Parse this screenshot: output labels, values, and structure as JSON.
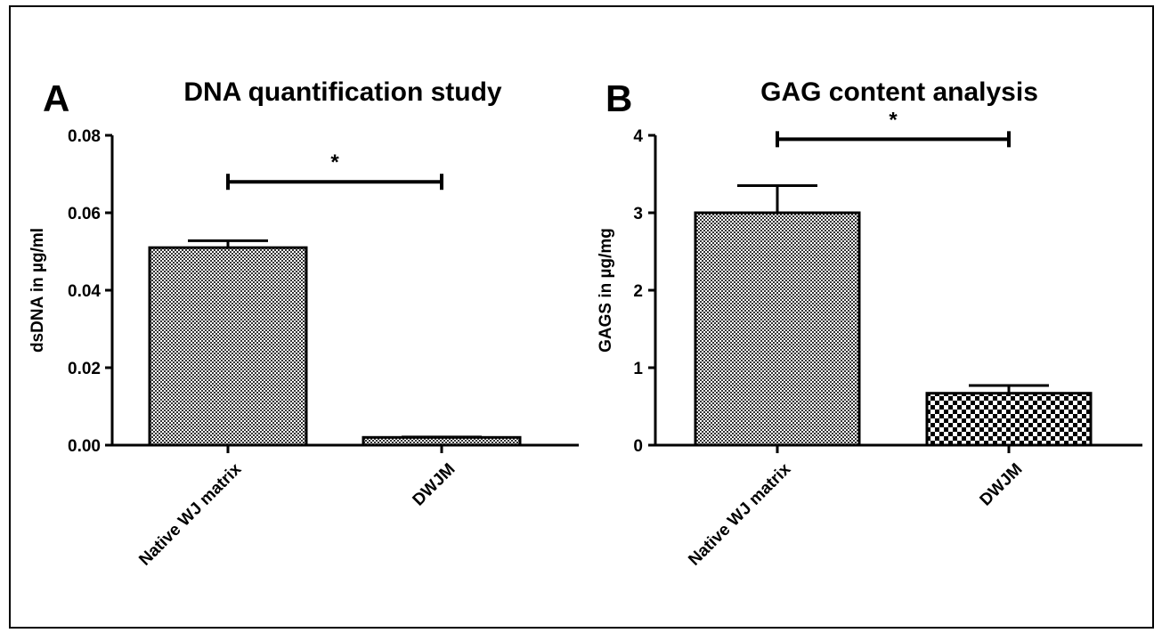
{
  "figure": {
    "frame": true
  },
  "chart_data": [
    {
      "type": "bar",
      "panel": "A",
      "title": "DNA quantification study",
      "xlabel": "",
      "ylabel": "dsDNA in µg/ml",
      "ylim": [
        0,
        0.08
      ],
      "yticks": [
        "0.00",
        "0.02",
        "0.04",
        "0.06",
        "0.08"
      ],
      "ytick_values": [
        0,
        0.02,
        0.04,
        0.06,
        0.08
      ],
      "categories": [
        "Native WJ matrix",
        "DWJM"
      ],
      "values": [
        0.051,
        0.002
      ],
      "errors": [
        0.0018,
        0.0001
      ],
      "patterns": [
        "fine",
        "fine"
      ],
      "significance": {
        "between": [
          0,
          1
        ],
        "label": "*",
        "y": 0.068
      },
      "grid": false,
      "legend": "none"
    },
    {
      "type": "bar",
      "panel": "B",
      "title": "GAG content analysis",
      "xlabel": "",
      "ylabel": "GAGS in µg/mg",
      "ylim": [
        0,
        4
      ],
      "yticks": [
        "0",
        "1",
        "2",
        "3",
        "4"
      ],
      "ytick_values": [
        0,
        1,
        2,
        3,
        4
      ],
      "categories": [
        "Native WJ matrix",
        "DWJM"
      ],
      "values": [
        3.0,
        0.67
      ],
      "errors": [
        0.35,
        0.1
      ],
      "patterns": [
        "fine",
        "coarse"
      ],
      "significance": {
        "between": [
          0,
          1
        ],
        "label": "*",
        "y": 3.95
      },
      "grid": false,
      "legend": "none"
    }
  ]
}
